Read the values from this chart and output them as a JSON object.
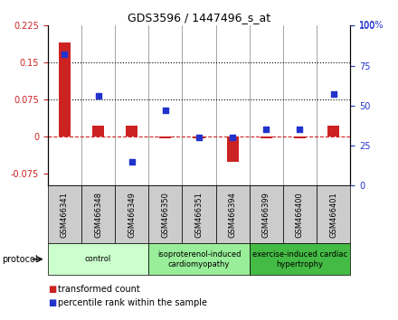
{
  "title": "GDS3596 / 1447496_s_at",
  "samples": [
    "GSM466341",
    "GSM466348",
    "GSM466349",
    "GSM466350",
    "GSM466351",
    "GSM466394",
    "GSM466399",
    "GSM466400",
    "GSM466401"
  ],
  "transformed_count": [
    0.19,
    0.022,
    0.022,
    -0.004,
    -0.004,
    -0.052,
    -0.004,
    -0.004,
    0.022
  ],
  "percentile_rank": [
    82,
    56,
    15,
    47,
    30,
    30,
    35,
    35,
    57
  ],
  "ylim_left": [
    -0.1,
    0.225
  ],
  "ylim_right": [
    0,
    100
  ],
  "yticks_left": [
    -0.075,
    0,
    0.075,
    0.15,
    0.225
  ],
  "yticks_right": [
    0,
    25,
    50,
    75,
    100
  ],
  "hlines": [
    0.075,
    0.15
  ],
  "bar_color": "#cc2222",
  "dot_color": "#2233cc",
  "zero_line_color": "#cc2222",
  "groups": [
    {
      "label": "control",
      "start": 0,
      "end": 3,
      "color": "#ccffcc"
    },
    {
      "label": "isoproterenol-induced\ncardiomyopathy",
      "start": 3,
      "end": 6,
      "color": "#99ee99"
    },
    {
      "label": "exercise-induced cardiac\nhypertrophy",
      "start": 6,
      "end": 9,
      "color": "#44bb44"
    }
  ],
  "bar_width": 0.35,
  "protocol_label": "protocol",
  "legend_items": [
    {
      "label": "transformed count",
      "color": "#cc2222"
    },
    {
      "label": "percentile rank within the sample",
      "color": "#2233cc"
    }
  ],
  "sample_box_color": "#cccccc",
  "fig_bg": "#ffffff"
}
